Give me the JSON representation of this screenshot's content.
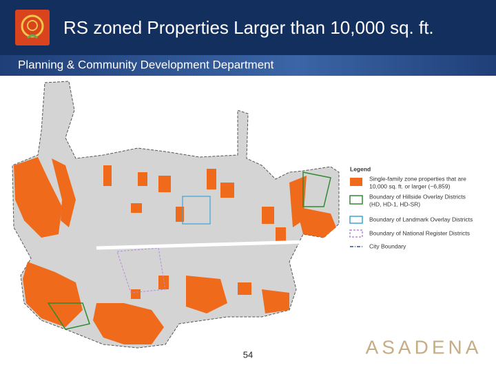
{
  "header": {
    "title": "RS zoned Properties Larger than 10,000 sq. ft.",
    "subtitle": "Planning & Community Development Department"
  },
  "legend": {
    "title": "Legend",
    "items": [
      {
        "lines": [
          "Single-family zone properties that are",
          "10,000 sq. ft. or larger (~6,859)"
        ]
      },
      {
        "lines": [
          "Boundary of Hillside Overlay Districts",
          "(HD, HD-1, HD-SR)"
        ]
      },
      {
        "lines": [
          "Boundary of Landmark Overlay Districts"
        ]
      },
      {
        "lines": [
          "Boundary of National Register Districts"
        ]
      },
      {
        "lines": [
          "City Boundary"
        ]
      }
    ]
  },
  "footer": {
    "page_number": "54",
    "logo_text": "ASADENA"
  }
}
